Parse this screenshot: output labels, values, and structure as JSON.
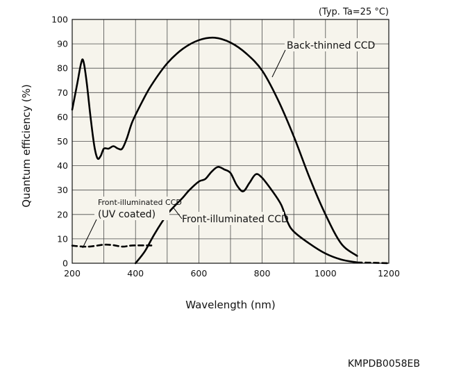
{
  "chart_data": {
    "type": "line",
    "title": "",
    "note": "(Typ. Ta=25 °C)",
    "xlabel": "Wavelength (nm)",
    "ylabel": "Quantum efficiency (%)",
    "xlim": [
      200,
      1200
    ],
    "ylim": [
      0,
      100
    ],
    "xticks": [
      200,
      400,
      600,
      800,
      1000,
      1200
    ],
    "yticks": [
      0,
      10,
      20,
      30,
      40,
      50,
      60,
      70,
      80,
      90,
      100
    ],
    "grid": true,
    "series": [
      {
        "name": "Back-thinned CCD",
        "style": "solid",
        "points": [
          [
            200,
            63
          ],
          [
            215,
            73
          ],
          [
            228,
            82
          ],
          [
            235,
            83
          ],
          [
            245,
            75
          ],
          [
            258,
            60
          ],
          [
            270,
            48
          ],
          [
            280,
            43
          ],
          [
            290,
            44
          ],
          [
            300,
            47
          ],
          [
            315,
            47
          ],
          [
            330,
            48
          ],
          [
            345,
            47
          ],
          [
            358,
            47
          ],
          [
            372,
            51
          ],
          [
            390,
            58
          ],
          [
            420,
            66
          ],
          [
            450,
            73
          ],
          [
            500,
            82
          ],
          [
            550,
            88
          ],
          [
            600,
            91.5
          ],
          [
            650,
            92.5
          ],
          [
            700,
            90.5
          ],
          [
            750,
            86
          ],
          [
            800,
            79
          ],
          [
            850,
            67
          ],
          [
            900,
            52
          ],
          [
            950,
            35
          ],
          [
            1000,
            20
          ],
          [
            1050,
            8
          ],
          [
            1100,
            3
          ]
        ]
      },
      {
        "name": "Front-illuminated CCD",
        "style": "solid",
        "points": [
          [
            400,
            0
          ],
          [
            430,
            5
          ],
          [
            460,
            12
          ],
          [
            500,
            20
          ],
          [
            520,
            23
          ],
          [
            550,
            27
          ],
          [
            570,
            30
          ],
          [
            600,
            33.5
          ],
          [
            620,
            34.5
          ],
          [
            640,
            37.5
          ],
          [
            660,
            39.5
          ],
          [
            680,
            38.5
          ],
          [
            700,
            37
          ],
          [
            720,
            32
          ],
          [
            740,
            29.5
          ],
          [
            760,
            33
          ],
          [
            780,
            36.5
          ],
          [
            800,
            35
          ],
          [
            830,
            30
          ],
          [
            860,
            24
          ],
          [
            880,
            17
          ],
          [
            900,
            13
          ],
          [
            950,
            8
          ],
          [
            1000,
            4
          ],
          [
            1050,
            1.5
          ],
          [
            1100,
            0.3
          ]
        ]
      },
      {
        "name": "Front-illuminated CCD (UV coated)",
        "style": "dashed",
        "points": [
          [
            200,
            7.2
          ],
          [
            250,
            6.8
          ],
          [
            300,
            7.6
          ],
          [
            330,
            7.4
          ],
          [
            360,
            6.8
          ],
          [
            390,
            7.3
          ],
          [
            450,
            7.3
          ]
        ]
      }
    ],
    "tail": {
      "style": "dashed",
      "points": [
        [
          1100,
          0.3
        ],
        [
          1150,
          0.2
        ],
        [
          1200,
          0
        ]
      ]
    },
    "annotations": {
      "back_thinned": "Back-thinned CCD",
      "front_illuminated": "Front-illuminated CCD",
      "uv_coated_line1": "Front-illuminated CCD",
      "uv_coated_line2": "(UV coated)"
    }
  },
  "figure_code": "KMPDB0058EB"
}
